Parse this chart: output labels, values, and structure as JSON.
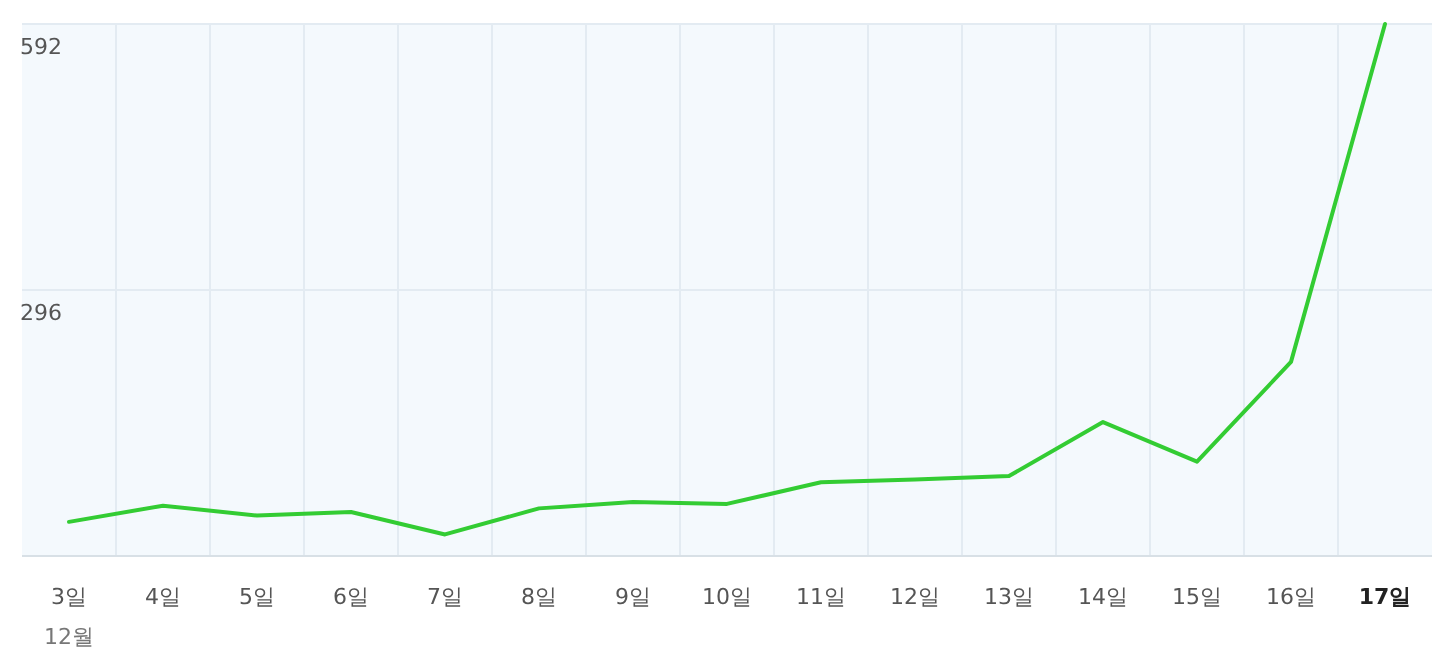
{
  "chart_data": {
    "type": "line",
    "categories": [
      "3일",
      "4일",
      "5일",
      "6일",
      "7일",
      "8일",
      "9일",
      "10일",
      "11일",
      "12일",
      "13일",
      "14일",
      "15일",
      "16일",
      "17일"
    ],
    "series": [
      {
        "color": "#33cc33",
        "values": [
          38,
          56,
          45,
          49,
          24,
          53,
          60,
          58,
          82,
          85,
          89,
          149,
          105,
          216,
          592
        ]
      }
    ],
    "ylim": [
      0,
      592
    ],
    "yticks": [
      296,
      592
    ],
    "grid": true,
    "annotations": [
      "12월"
    ]
  }
}
